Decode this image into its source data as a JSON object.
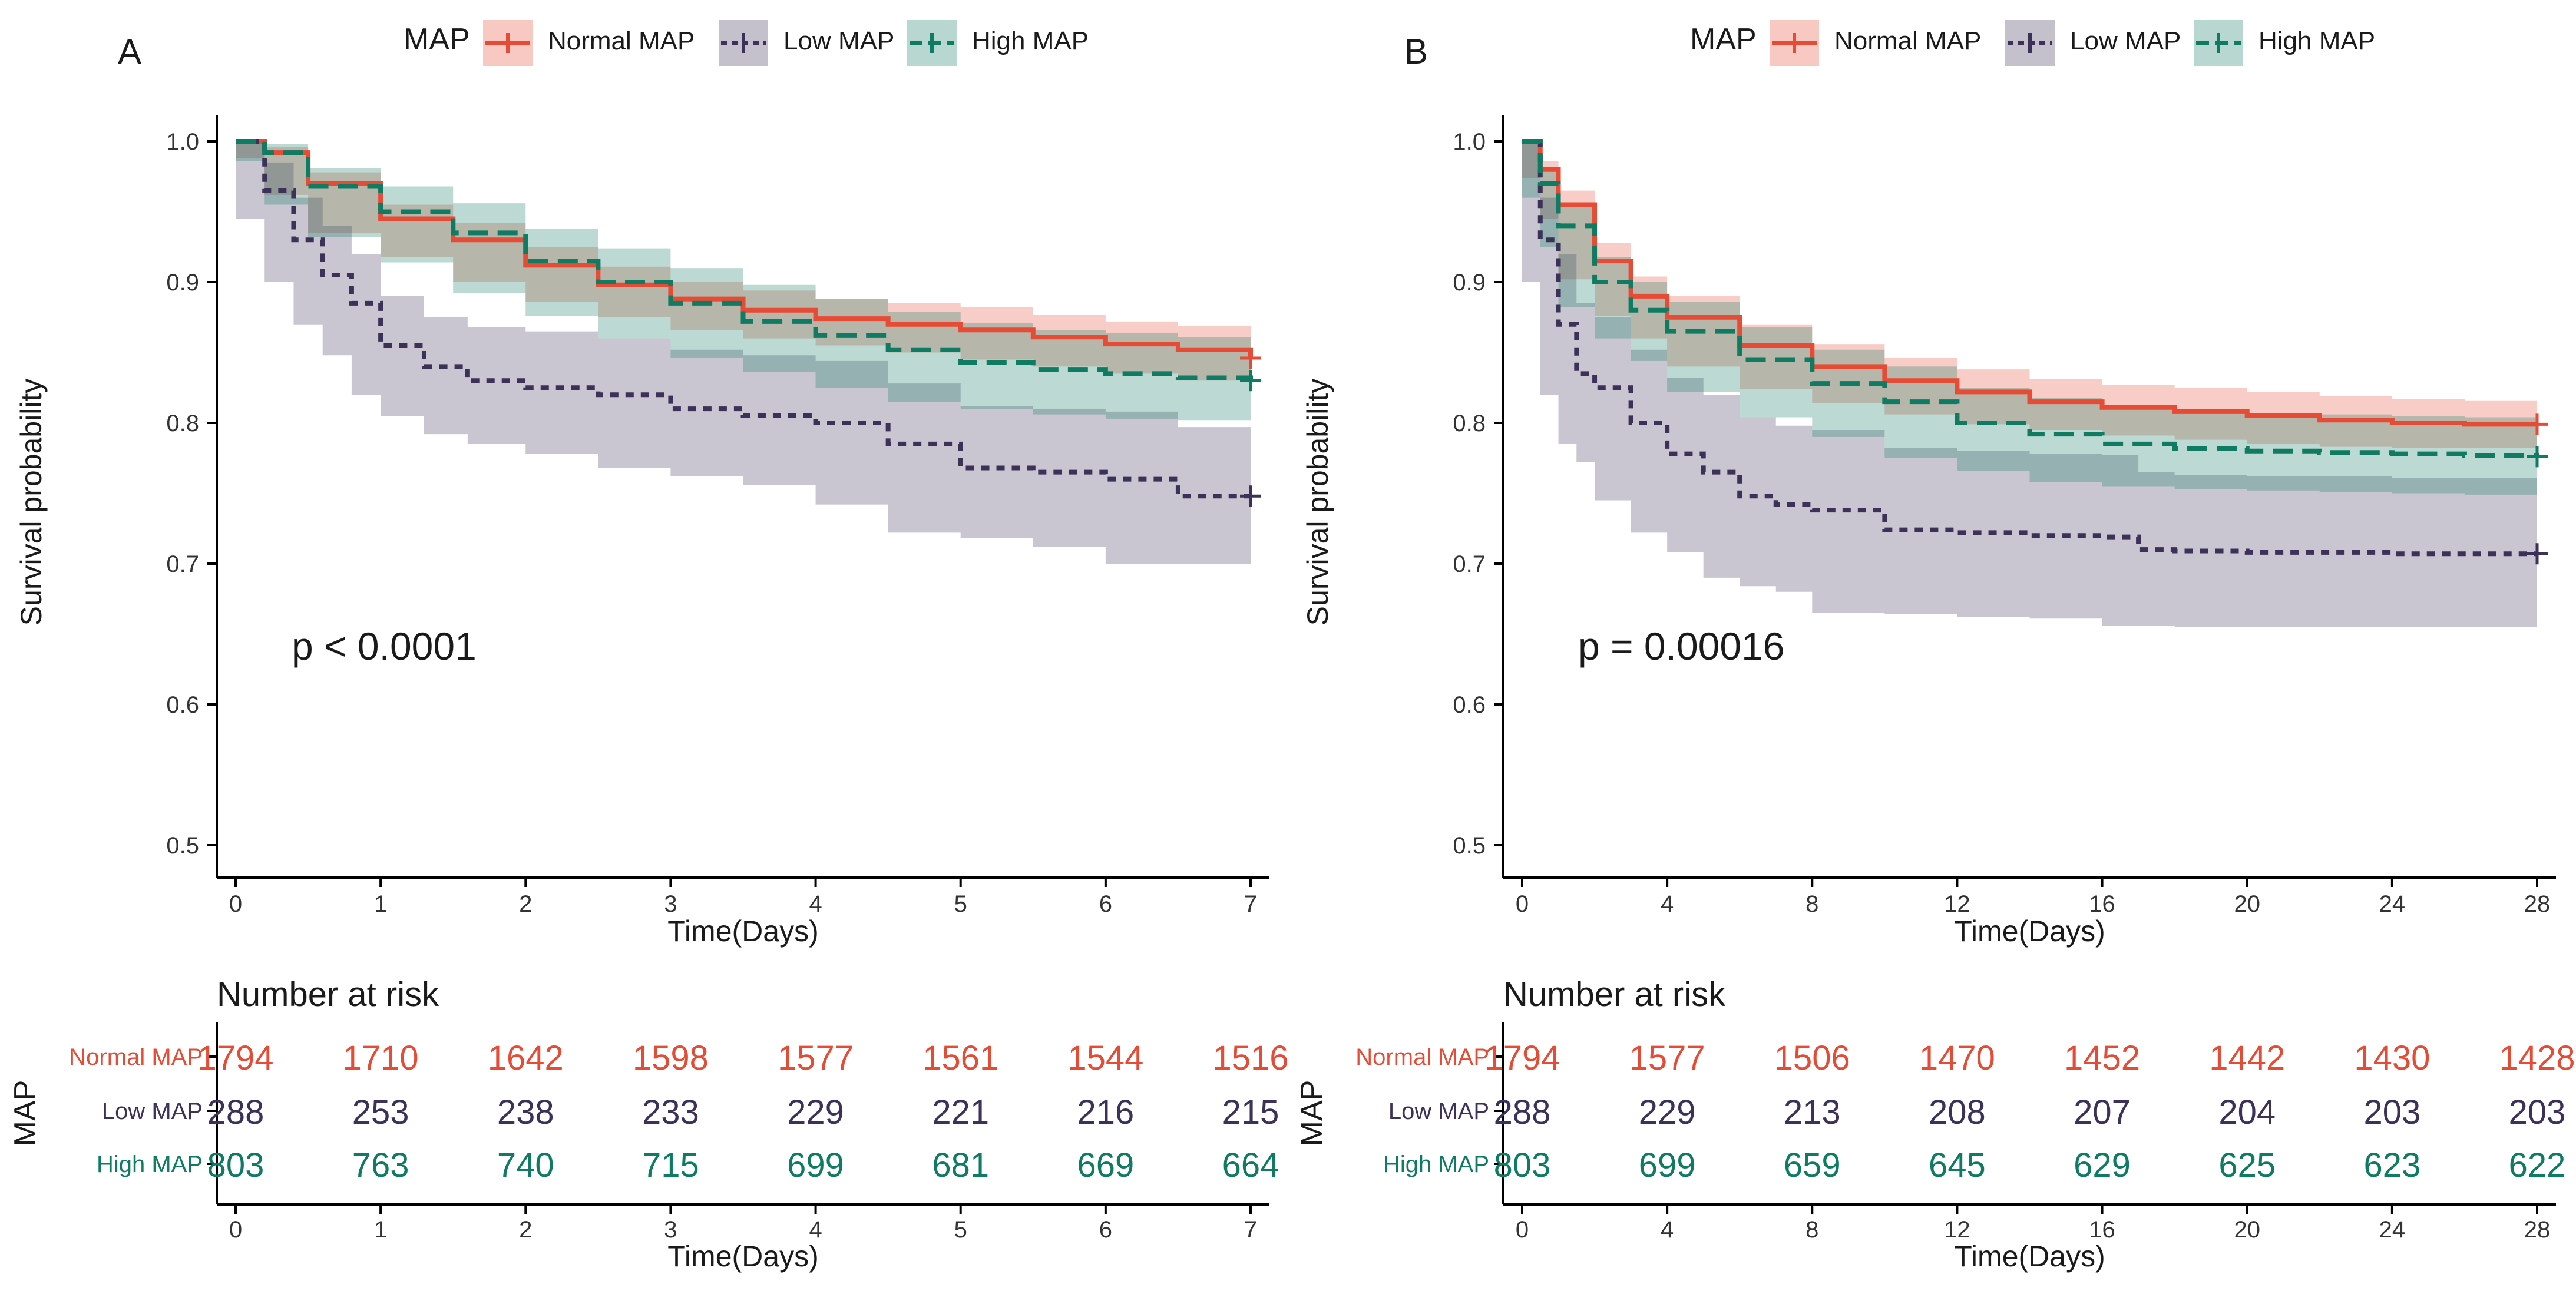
{
  "chart_data": [
    {
      "panel_label": "A",
      "type": "line",
      "subtype": "kaplan-meier",
      "title": "",
      "legend_title": "MAP",
      "legend": [
        {
          "name": "Normal MAP",
          "color": "#E64B35",
          "dash": "solid"
        },
        {
          "name": "Low MAP",
          "color": "#3C3158",
          "dash": "dotted"
        },
        {
          "name": "High MAP",
          "color": "#0F7B62",
          "dash": "dashed"
        }
      ],
      "xlabel": "Time(Days)",
      "ylabel": "Survival probability",
      "xlim": [
        0,
        7
      ],
      "ylim": [
        0.5,
        1.0
      ],
      "xticks": [
        0,
        1,
        2,
        3,
        4,
        5,
        6,
        7
      ],
      "xtick_labels": [
        "0",
        "1",
        "2",
        "3",
        "4",
        "5",
        "6",
        "7"
      ],
      "yticks": [
        0.5,
        0.6,
        0.7,
        0.8,
        0.9,
        1.0
      ],
      "ytick_labels": [
        "0.5",
        "0.6",
        "0.7",
        "0.8",
        "0.9",
        "1.0"
      ],
      "pvalue": "p < 0.0001",
      "series": [
        {
          "name": "Normal MAP",
          "x": [
            0,
            0.2,
            0.5,
            1.0,
            1.5,
            2.0,
            2.5,
            3.0,
            3.5,
            4.0,
            4.5,
            5.0,
            5.5,
            6.0,
            6.5,
            7.0
          ],
          "values": [
            1.0,
            0.992,
            0.97,
            0.945,
            0.93,
            0.912,
            0.898,
            0.888,
            0.88,
            0.874,
            0.87,
            0.866,
            0.861,
            0.856,
            0.852,
            0.846
          ],
          "lower": [
            1.0,
            0.988,
            0.962,
            0.935,
            0.918,
            0.9,
            0.886,
            0.875,
            0.866,
            0.86,
            0.855,
            0.85,
            0.845,
            0.84,
            0.835,
            0.83
          ],
          "upper": [
            1.0,
            0.996,
            0.978,
            0.955,
            0.942,
            0.925,
            0.911,
            0.9,
            0.894,
            0.888,
            0.885,
            0.882,
            0.877,
            0.872,
            0.869,
            0.862
          ]
        },
        {
          "name": "Low MAP",
          "x": [
            0,
            0.2,
            0.4,
            0.6,
            0.8,
            1.0,
            1.3,
            1.6,
            2.0,
            2.5,
            3.0,
            3.5,
            4.0,
            4.5,
            5.0,
            5.5,
            6.0,
            6.5,
            7.0
          ],
          "values": [
            1.0,
            0.965,
            0.93,
            0.905,
            0.885,
            0.855,
            0.84,
            0.83,
            0.825,
            0.82,
            0.81,
            0.805,
            0.8,
            0.785,
            0.768,
            0.765,
            0.76,
            0.748,
            0.748
          ],
          "lower": [
            1.0,
            0.945,
            0.9,
            0.87,
            0.848,
            0.82,
            0.805,
            0.792,
            0.785,
            0.778,
            0.768,
            0.762,
            0.756,
            0.742,
            0.722,
            0.718,
            0.712,
            0.7,
            0.7
          ],
          "upper": [
            1.0,
            0.985,
            0.96,
            0.94,
            0.92,
            0.89,
            0.875,
            0.868,
            0.865,
            0.86,
            0.852,
            0.848,
            0.844,
            0.828,
            0.812,
            0.81,
            0.808,
            0.797,
            0.797
          ]
        },
        {
          "name": "High MAP",
          "x": [
            0,
            0.2,
            0.5,
            1.0,
            1.5,
            2.0,
            2.5,
            3.0,
            3.5,
            4.0,
            4.5,
            5.0,
            5.5,
            6.0,
            6.5,
            7.0
          ],
          "values": [
            1.0,
            0.992,
            0.968,
            0.95,
            0.935,
            0.915,
            0.9,
            0.885,
            0.872,
            0.862,
            0.852,
            0.843,
            0.838,
            0.835,
            0.832,
            0.83
          ],
          "lower": [
            1.0,
            0.986,
            0.955,
            0.932,
            0.914,
            0.892,
            0.876,
            0.86,
            0.846,
            0.836,
            0.825,
            0.815,
            0.81,
            0.806,
            0.803,
            0.802
          ],
          "upper": [
            1.0,
            0.998,
            0.981,
            0.968,
            0.956,
            0.938,
            0.924,
            0.91,
            0.898,
            0.888,
            0.879,
            0.871,
            0.866,
            0.864,
            0.861,
            0.858
          ]
        }
      ],
      "risk_table": {
        "title": "Number at risk",
        "ylabel": "MAP",
        "xlabel": "Time(Days)",
        "times": [
          "0",
          "1",
          "2",
          "3",
          "4",
          "5",
          "6",
          "7"
        ],
        "rows": [
          {
            "group": "Normal MAP",
            "counts": [
              "1794",
              "1710",
              "1642",
              "1598",
              "1577",
              "1561",
              "1544",
              "1516"
            ]
          },
          {
            "group": "Low MAP",
            "counts": [
              "288",
              "253",
              "238",
              "233",
              "229",
              "221",
              "216",
              "215"
            ]
          },
          {
            "group": "High MAP",
            "counts": [
              "803",
              "763",
              "740",
              "715",
              "699",
              "681",
              "669",
              "664"
            ]
          }
        ]
      }
    },
    {
      "panel_label": "B",
      "type": "line",
      "subtype": "kaplan-meier",
      "title": "",
      "legend_title": "MAP",
      "legend": [
        {
          "name": "Normal MAP",
          "color": "#E64B35",
          "dash": "solid"
        },
        {
          "name": "Low MAP",
          "color": "#3C3158",
          "dash": "dotted"
        },
        {
          "name": "High MAP",
          "color": "#0F7B62",
          "dash": "dashed"
        }
      ],
      "xlabel": "Time(Days)",
      "ylabel": "Survival probability",
      "xlim": [
        0,
        28
      ],
      "ylim": [
        0.5,
        1.0
      ],
      "xticks": [
        0,
        4,
        8,
        12,
        16,
        20,
        24,
        28
      ],
      "xtick_labels": [
        "0",
        "4",
        "8",
        "12",
        "16",
        "20",
        "24",
        "28"
      ],
      "yticks": [
        0.5,
        0.6,
        0.7,
        0.8,
        0.9,
        1.0
      ],
      "ytick_labels": [
        "0.5",
        "0.6",
        "0.7",
        "0.8",
        "0.9",
        "1.0"
      ],
      "pvalue": "p = 0.00016",
      "series": [
        {
          "name": "Normal MAP",
          "x": [
            0,
            0.5,
            1,
            2,
            3,
            4,
            6,
            8,
            10,
            12,
            14,
            16,
            18,
            20,
            22,
            24,
            26,
            28
          ],
          "values": [
            1.0,
            0.98,
            0.955,
            0.915,
            0.89,
            0.875,
            0.855,
            0.84,
            0.83,
            0.822,
            0.815,
            0.811,
            0.808,
            0.805,
            0.802,
            0.8,
            0.799,
            0.799
          ],
          "lower": [
            1.0,
            0.974,
            0.945,
            0.902,
            0.876,
            0.86,
            0.84,
            0.824,
            0.814,
            0.806,
            0.799,
            0.795,
            0.791,
            0.788,
            0.785,
            0.783,
            0.782,
            0.782
          ],
          "upper": [
            1.0,
            0.986,
            0.965,
            0.928,
            0.904,
            0.89,
            0.87,
            0.856,
            0.846,
            0.838,
            0.831,
            0.827,
            0.825,
            0.822,
            0.819,
            0.817,
            0.816,
            0.816
          ]
        },
        {
          "name": "Low MAP",
          "x": [
            0,
            0.5,
            1,
            1.5,
            2,
            3,
            4,
            5,
            6,
            7,
            8,
            10,
            12,
            14,
            16,
            17,
            18,
            20,
            22,
            24,
            26,
            28
          ],
          "values": [
            1.0,
            0.93,
            0.87,
            0.835,
            0.825,
            0.8,
            0.778,
            0.765,
            0.748,
            0.742,
            0.738,
            0.724,
            0.722,
            0.72,
            0.719,
            0.71,
            0.709,
            0.708,
            0.708,
            0.707,
            0.707,
            0.707
          ],
          "lower": [
            1.0,
            0.9,
            0.82,
            0.785,
            0.772,
            0.745,
            0.722,
            0.708,
            0.69,
            0.684,
            0.68,
            0.665,
            0.664,
            0.662,
            0.661,
            0.656,
            0.656,
            0.655,
            0.655,
            0.655,
            0.655,
            0.655
          ],
          "upper": [
            1.0,
            0.96,
            0.92,
            0.885,
            0.875,
            0.852,
            0.832,
            0.82,
            0.804,
            0.798,
            0.795,
            0.782,
            0.78,
            0.778,
            0.777,
            0.765,
            0.763,
            0.762,
            0.762,
            0.761,
            0.761,
            0.761
          ]
        },
        {
          "name": "High MAP",
          "x": [
            0,
            0.5,
            1,
            2,
            3,
            4,
            6,
            8,
            10,
            12,
            14,
            16,
            18,
            20,
            22,
            24,
            26,
            28
          ],
          "values": [
            1.0,
            0.97,
            0.94,
            0.9,
            0.88,
            0.865,
            0.845,
            0.828,
            0.815,
            0.8,
            0.792,
            0.785,
            0.782,
            0.78,
            0.779,
            0.778,
            0.777,
            0.776
          ],
          "lower": [
            1.0,
            0.96,
            0.925,
            0.882,
            0.86,
            0.844,
            0.822,
            0.804,
            0.79,
            0.775,
            0.766,
            0.758,
            0.755,
            0.753,
            0.752,
            0.751,
            0.75,
            0.749
          ],
          "upper": [
            1.0,
            0.98,
            0.955,
            0.918,
            0.9,
            0.886,
            0.868,
            0.852,
            0.84,
            0.825,
            0.818,
            0.812,
            0.809,
            0.807,
            0.806,
            0.805,
            0.804,
            0.803
          ]
        }
      ],
      "risk_table": {
        "title": "Number at risk",
        "ylabel": "MAP",
        "xlabel": "Time(Days)",
        "times": [
          "0",
          "4",
          "8",
          "12",
          "16",
          "20",
          "24",
          "28"
        ],
        "rows": [
          {
            "group": "Normal MAP",
            "counts": [
              "1794",
              "1577",
              "1506",
              "1470",
              "1452",
              "1442",
              "1430",
              "1428"
            ]
          },
          {
            "group": "Low MAP",
            "counts": [
              "288",
              "229",
              "213",
              "208",
              "207",
              "204",
              "203",
              "203"
            ]
          },
          {
            "group": "High MAP",
            "counts": [
              "803",
              "699",
              "659",
              "645",
              "629",
              "625",
              "623",
              "622"
            ]
          }
        ]
      }
    }
  ]
}
